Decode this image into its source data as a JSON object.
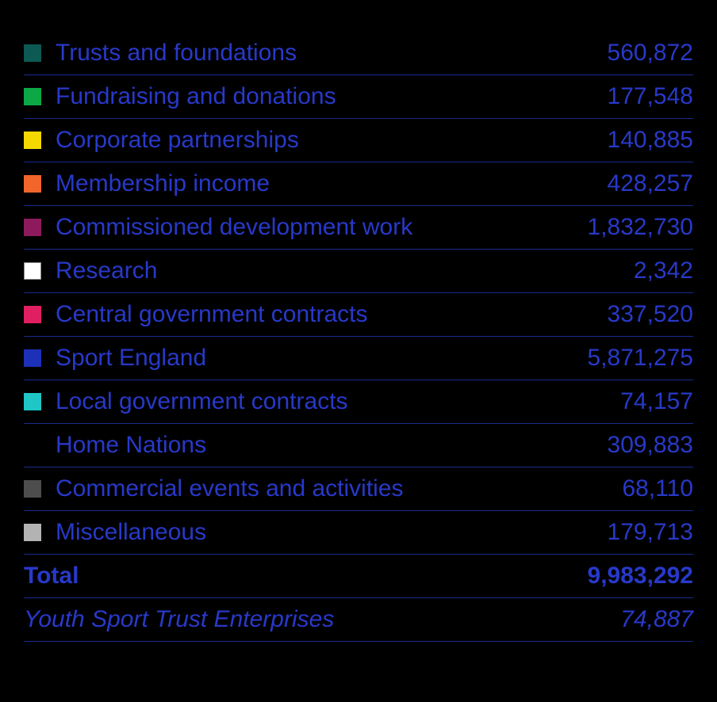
{
  "table": {
    "text_color": "#2839c9",
    "border_color": "#1a2b8e",
    "background_color": "#000000",
    "font_size": 30,
    "rows": [
      {
        "swatch": "#0d5954",
        "label": "Trusts and foundations",
        "value": "560,872"
      },
      {
        "swatch": "#0ca846",
        "label": "Fundraising and donations",
        "value": "177,548"
      },
      {
        "swatch": "#f5d800",
        "label": "Corporate partnerships",
        "value": "140,885"
      },
      {
        "swatch": "#f1662a",
        "label": "Membership income",
        "value": "428,257"
      },
      {
        "swatch": "#8e1a5e",
        "label": "Commissioned development work",
        "value": "1,832,730"
      },
      {
        "swatch": "#ffffff",
        "swatch_border": "#8a8a8a",
        "label": "Research",
        "value": "2,342"
      },
      {
        "swatch": "#e01f62",
        "label": "Central government contracts",
        "value": "337,520"
      },
      {
        "swatch": "#1c31b8",
        "label": "Sport England",
        "value": "5,871,275"
      },
      {
        "swatch": "#1fc6c6",
        "label": "Local government contracts",
        "value": "74,157"
      },
      {
        "swatch": null,
        "label": "Home Nations",
        "value": "309,883"
      },
      {
        "swatch": "#4d4d4d",
        "label": "Commercial events and activities",
        "value": "68,110"
      },
      {
        "swatch": "#b3b3b3",
        "label": "Miscellaneous",
        "value": "179,713"
      }
    ],
    "total": {
      "label": "Total",
      "value": "9,983,292"
    },
    "footer": {
      "label": "Youth Sport Trust Enterprises",
      "value": "74,887"
    }
  }
}
